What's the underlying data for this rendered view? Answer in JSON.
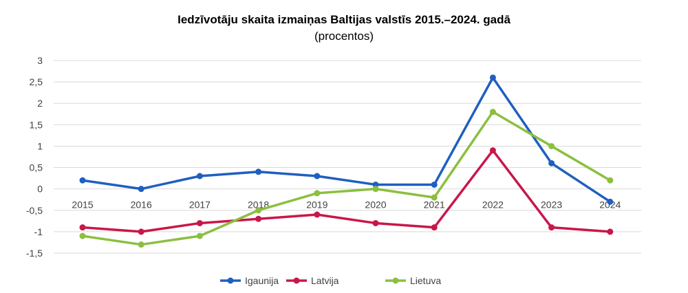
{
  "chart_data": {
    "type": "line",
    "title": "Iedzīvotāju skaita izmaiņas Baltijas valstīs 2015.–2024. gadā",
    "subtitle": "(procentos)",
    "xlabel": "",
    "ylabel": "",
    "categories": [
      "2015",
      "2016",
      "2017",
      "2018",
      "2019",
      "2020",
      "2021",
      "2022",
      "2023",
      "2024"
    ],
    "ylim": [
      -1.5,
      3
    ],
    "yticks": [
      3,
      2.5,
      2,
      1.5,
      1,
      0.5,
      0,
      -0.5,
      -1,
      -1.5
    ],
    "ytick_labels": [
      "3",
      "2,5",
      "2",
      "1,5",
      "1",
      "0,5",
      "0",
      "-0,5",
      "-1",
      "-1,5"
    ],
    "grid": true,
    "legend_position": "bottom",
    "series": [
      {
        "name": "Igaunija",
        "color": "#1f5fbf",
        "values": [
          0.2,
          0.0,
          0.3,
          0.4,
          0.3,
          0.1,
          0.1,
          2.6,
          0.6,
          -0.3
        ]
      },
      {
        "name": "Latvija",
        "color": "#c8174a",
        "values": [
          -0.9,
          -1.0,
          -0.8,
          -0.7,
          -0.6,
          -0.8,
          -0.9,
          0.9,
          -0.9,
          -1.0
        ]
      },
      {
        "name": "Lietuva",
        "color": "#8bbf3f",
        "values": [
          -1.1,
          -1.3,
          -1.1,
          -0.5,
          -0.1,
          0.0,
          -0.2,
          1.8,
          1.0,
          0.2
        ]
      }
    ]
  }
}
